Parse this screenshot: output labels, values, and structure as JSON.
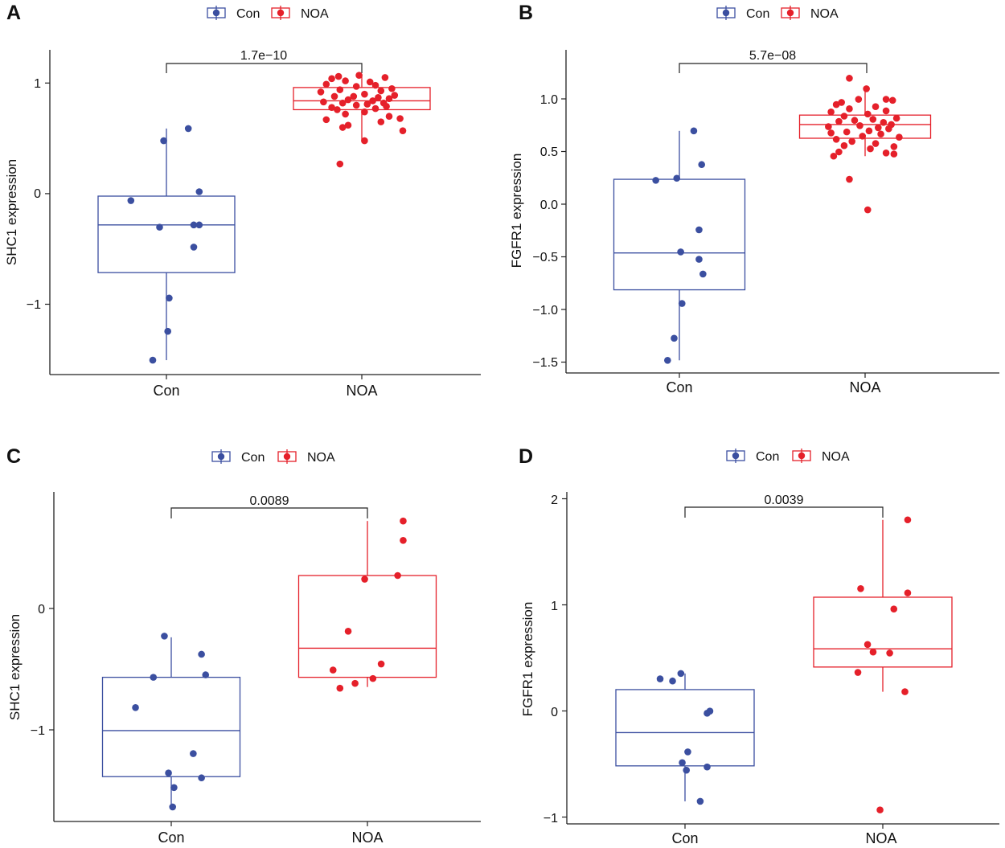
{
  "colors": {
    "con": "#3B4FA0",
    "noa": "#E5202A",
    "axis": "#222222",
    "text": "#111111"
  },
  "chart_data": [
    {
      "panel_label": "A",
      "type": "box",
      "legend": [
        "Con",
        "NOA"
      ],
      "ylabel": "SHC1 expression",
      "categories": [
        "Con",
        "NOA"
      ],
      "ylim": [
        -1.65,
        1.28
      ],
      "yticks": [
        -1,
        0,
        1
      ],
      "yticklabels": [
        "−1",
        "0",
        "1"
      ],
      "pvalue": "1.7e−10",
      "boxes": [
        {
          "name": "Con",
          "q1": -0.73,
          "median": -0.3,
          "q3": -0.04,
          "whisker_low": -1.52,
          "whisker_high": 0.57
        },
        {
          "name": "NOA",
          "q1": 0.74,
          "median": 0.82,
          "q3": 0.94,
          "whisker_low": 0.46,
          "whisker_high": 1.06
        }
      ],
      "points": [
        {
          "group": "Con",
          "values": [
            -0.08,
            0.46,
            0.57,
            0.0,
            -0.32,
            -0.3,
            -0.3,
            -0.5,
            -0.96,
            -1.26,
            -1.52
          ],
          "jitter": [
            -0.26,
            -0.02,
            0.16,
            0.24,
            -0.05,
            0.2,
            0.24,
            0.2,
            0.02,
            0.01,
            -0.1
          ]
        },
        {
          "group": "NOA",
          "values": [
            1.05,
            1.04,
            1.03,
            1.02,
            1.0,
            0.99,
            0.97,
            0.96,
            0.95,
            0.93,
            0.92,
            0.91,
            0.9,
            0.88,
            0.87,
            0.86,
            0.86,
            0.85,
            0.84,
            0.83,
            0.82,
            0.81,
            0.8,
            0.8,
            0.79,
            0.78,
            0.77,
            0.76,
            0.75,
            0.74,
            0.72,
            0.7,
            0.68,
            0.66,
            0.65,
            0.63,
            0.6,
            0.58,
            0.55,
            0.46,
            0.25
          ],
          "jitter": [
            -0.02,
            -0.17,
            0.17,
            -0.22,
            -0.12,
            0.06,
            -0.26,
            0.1,
            -0.04,
            0.22,
            -0.16,
            0.14,
            -0.3,
            0.02,
            0.24,
            -0.2,
            -0.06,
            0.12,
            0.2,
            -0.1,
            0.08,
            -0.28,
            -0.14,
            0.16,
            0.04,
            -0.04,
            0.18,
            -0.22,
            0.1,
            -0.18,
            0.02,
            -0.12,
            0.2,
            0.28,
            -0.26,
            0.14,
            -0.1,
            -0.14,
            0.3,
            0.02,
            -0.16
          ]
        }
      ]
    },
    {
      "panel_label": "B",
      "type": "box",
      "legend": [
        "Con",
        "NOA"
      ],
      "ylabel": "FGFR1 expression",
      "categories": [
        "Con",
        "NOA"
      ],
      "ylim": [
        -1.6,
        1.47
      ],
      "yticks": [
        -1.5,
        -1.0,
        -0.5,
        0.0,
        0.5,
        1.0
      ],
      "yticklabels": [
        "−1.5",
        "−1.0",
        "−0.5",
        "0.0",
        "0.5",
        "1.0"
      ],
      "pvalue": "5.7e−08",
      "boxes": [
        {
          "name": "Con",
          "q1": -0.81,
          "median": -0.46,
          "q3": 0.24,
          "whisker_low": -1.48,
          "whisker_high": 0.7
        },
        {
          "name": "NOA",
          "q1": 0.63,
          "median": 0.76,
          "q3": 0.85,
          "whisker_low": 0.46,
          "whisker_high": 1.1
        }
      ],
      "points": [
        {
          "group": "Con",
          "values": [
            0.7,
            0.38,
            0.25,
            0.23,
            -0.24,
            -0.45,
            -0.52,
            -0.66,
            -0.94,
            -1.27,
            -1.48
          ],
          "jitter": [
            0.11,
            0.17,
            -0.02,
            -0.18,
            0.15,
            0.01,
            0.15,
            0.18,
            0.02,
            -0.04,
            -0.09
          ]
        },
        {
          "group": "NOA",
          "values": [
            1.2,
            1.1,
            1.0,
            1.0,
            0.99,
            0.97,
            0.95,
            0.93,
            0.91,
            0.89,
            0.88,
            0.86,
            0.84,
            0.82,
            0.81,
            0.8,
            0.79,
            0.78,
            0.76,
            0.75,
            0.74,
            0.73,
            0.72,
            0.7,
            0.69,
            0.68,
            0.67,
            0.65,
            0.64,
            0.62,
            0.6,
            0.58,
            0.56,
            0.55,
            0.53,
            0.5,
            0.49,
            0.48,
            0.46,
            0.24,
            -0.05
          ],
          "jitter": [
            -0.12,
            0.01,
            -0.05,
            0.16,
            0.21,
            -0.18,
            -0.22,
            0.08,
            -0.12,
            0.16,
            -0.26,
            0.02,
            -0.16,
            0.24,
            0.06,
            -0.08,
            -0.2,
            0.14,
            0.2,
            -0.04,
            -0.28,
            0.1,
            0.18,
            0.03,
            -0.14,
            -0.26,
            0.12,
            -0.02,
            0.26,
            -0.22,
            -0.1,
            0.08,
            -0.16,
            0.22,
            0.04,
            -0.2,
            0.16,
            0.22,
            -0.24,
            -0.12,
            0.02
          ]
        }
      ]
    },
    {
      "panel_label": "C",
      "type": "box",
      "legend": [
        "Con",
        "NOA"
      ],
      "ylabel": "SHC1 expression",
      "categories": [
        "Con",
        "NOA"
      ],
      "ylim": [
        -1.77,
        0.95
      ],
      "yticks": [
        -1,
        0
      ],
      "yticklabels": [
        "−1",
        "0"
      ],
      "pvalue": "0.0089",
      "boxes": [
        {
          "name": "Con",
          "q1": -1.4,
          "median": -1.02,
          "q3": -0.58,
          "whisker_low": -1.66,
          "whisker_high": -0.25
        },
        {
          "name": "NOA",
          "q1": -0.58,
          "median": -0.34,
          "q3": 0.26,
          "whisker_low": -0.66,
          "whisker_high": 0.71
        }
      ],
      "points": [
        {
          "group": "Con",
          "values": [
            -0.24,
            -0.39,
            -0.56,
            -0.58,
            -0.83,
            -1.21,
            -1.37,
            -1.41,
            -1.49,
            -1.65
          ],
          "jitter": [
            -0.05,
            0.22,
            0.25,
            -0.13,
            -0.26,
            0.16,
            -0.02,
            0.22,
            0.02,
            0.01
          ]
        },
        {
          "group": "NOA",
          "values": [
            0.71,
            0.55,
            0.26,
            0.23,
            -0.2,
            -0.47,
            -0.52,
            -0.59,
            -0.63,
            -0.67
          ],
          "jitter": [
            0.26,
            0.26,
            0.22,
            -0.02,
            -0.14,
            0.1,
            -0.25,
            0.04,
            -0.09,
            -0.2
          ]
        }
      ]
    },
    {
      "panel_label": "D",
      "type": "box",
      "legend": [
        "Con",
        "NOA"
      ],
      "ylabel": "FGFR1 expression",
      "categories": [
        "Con",
        "NOA"
      ],
      "ylim": [
        -1.05,
        2.04
      ],
      "yticks": [
        -1,
        0,
        1,
        2
      ],
      "yticklabels": [
        "−1",
        "0",
        "1",
        "2"
      ],
      "pvalue": "0.0039",
      "boxes": [
        {
          "name": "Con",
          "q1": -0.51,
          "median": -0.2,
          "q3": 0.2,
          "whisker_low": -0.84,
          "whisker_high": 0.35
        },
        {
          "name": "NOA",
          "q1": 0.41,
          "median": 0.58,
          "q3": 1.06,
          "whisker_low": 0.18,
          "whisker_high": 1.78
        }
      ],
      "points": [
        {
          "group": "Con",
          "values": [
            0.35,
            0.3,
            0.28,
            0.0,
            -0.02,
            -0.38,
            -0.48,
            -0.52,
            -0.55,
            -0.84
          ],
          "jitter": [
            -0.03,
            -0.18,
            -0.09,
            0.18,
            0.16,
            0.02,
            -0.02,
            0.16,
            0.01,
            0.11
          ]
        },
        {
          "group": "NOA",
          "values": [
            1.78,
            1.14,
            1.1,
            0.95,
            0.62,
            0.55,
            0.54,
            0.36,
            0.18,
            -0.92
          ],
          "jitter": [
            0.18,
            -0.16,
            0.18,
            0.08,
            -0.11,
            -0.07,
            0.05,
            -0.18,
            0.16,
            -0.02
          ]
        }
      ]
    }
  ]
}
